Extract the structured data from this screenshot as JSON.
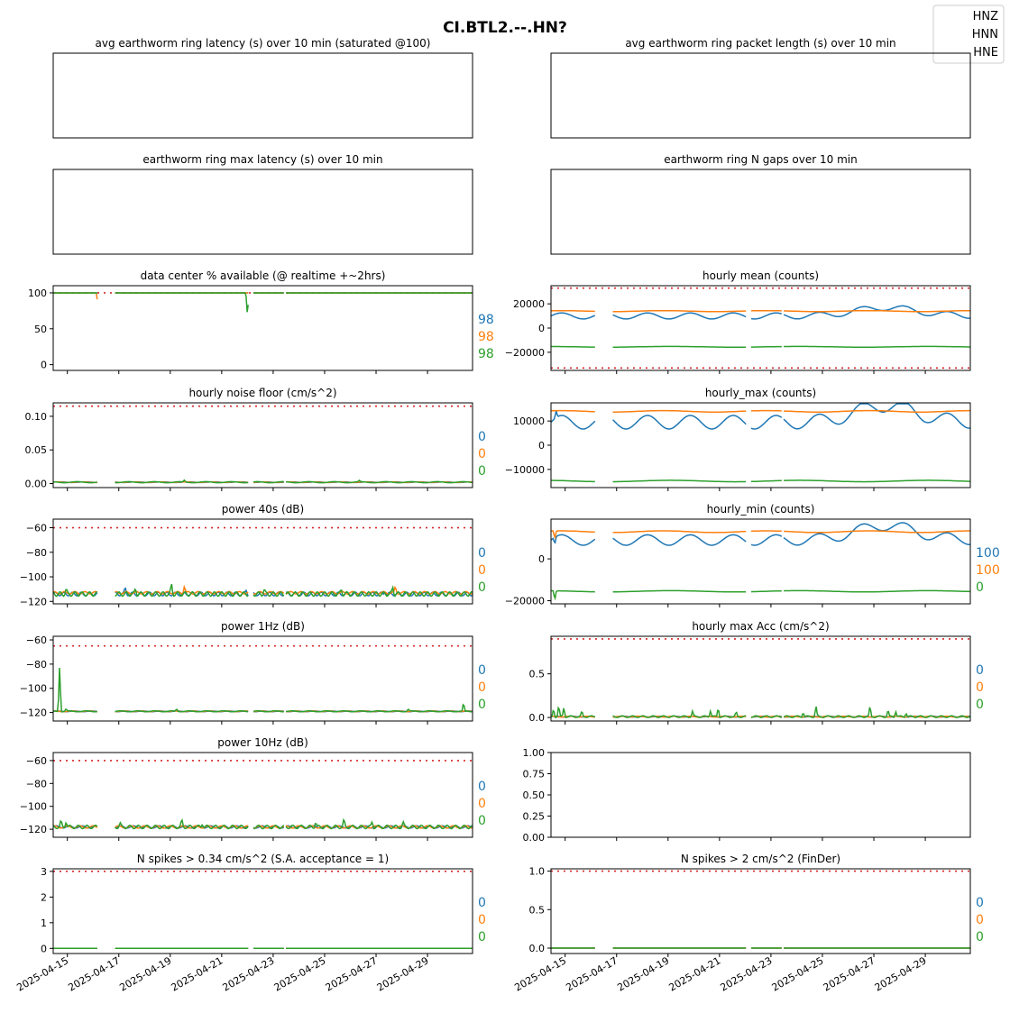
{
  "figure_title": "CI.BTL2.--.HN?",
  "legend": [
    {
      "label": "HNZ",
      "color": "#1f77b4"
    },
    {
      "label": "HNN",
      "color": "#ff7f0e"
    },
    {
      "label": "HNE",
      "color": "#2ca02c"
    }
  ],
  "colors": {
    "threshold": "#d62728",
    "series": [
      "#1f77b4",
      "#ff7f0e",
      "#2ca02c"
    ]
  },
  "x_tick_labels": [
    "2025-04-15",
    "2025-04-17",
    "2025-04-19",
    "2025-04-21",
    "2025-04-23",
    "2025-04-25",
    "2025-04-27",
    "2025-04-29"
  ],
  "chart_data": [
    {
      "type": "line",
      "title": "avg earthworm ring latency (s)   over 10 min (saturated @100)",
      "empty": true,
      "show_ticks": false,
      "side_values": []
    },
    {
      "type": "line",
      "title": "avg earthworm ring packet length (s)   over 10 min",
      "empty": true,
      "show_ticks": false,
      "side_values": []
    },
    {
      "type": "line",
      "title": "earthworm ring max latency (s)   over 10 min",
      "empty": true,
      "show_ticks": false,
      "side_values": []
    },
    {
      "type": "line",
      "title": "earthworm ring N gaps   over 10 min",
      "empty": true,
      "show_ticks": false,
      "side_values": []
    },
    {
      "type": "line",
      "title": "data center % available (@ realtime +~2hrs)",
      "ylim": [
        -8,
        110
      ],
      "yticks": [
        0,
        50,
        100
      ],
      "ytick_labels": [
        "0",
        "50",
        "100"
      ],
      "thresholds": [
        100
      ],
      "side_values": [
        "98",
        "98",
        "98"
      ],
      "series": [
        {
          "name": "HNZ",
          "base": 100,
          "amp": 0,
          "wave": 0,
          "spikes": []
        },
        {
          "name": "HNN",
          "base": 100,
          "amp": 0,
          "wave": 0,
          "spikes": [
            [
              1.75,
              -25
            ]
          ]
        },
        {
          "name": "HNE",
          "base": 100,
          "amp": 0,
          "wave": 0,
          "spikes": [
            [
              7.55,
              -33
            ],
            [
              7.7,
              -40
            ]
          ]
        }
      ]
    },
    {
      "type": "line",
      "title": "hourly mean (counts)",
      "ylim": [
        -35000,
        35000
      ],
      "yticks": [
        -20000,
        0,
        20000
      ],
      "ytick_labels": [
        "−20000",
        "0",
        "20000"
      ],
      "thresholds": [
        33000,
        -33000
      ],
      "side_values": [],
      "series": [
        {
          "name": "HNZ",
          "base": 10000,
          "amp": 2500,
          "wave": 1.2,
          "trend": [
            [
              13,
              17000
            ],
            [
              16,
              11000
            ]
          ],
          "spikes": []
        },
        {
          "name": "HNN",
          "base": 14000,
          "amp": 400,
          "wave": 0.5,
          "spikes": []
        },
        {
          "name": "HNE",
          "base": -15500,
          "amp": 300,
          "wave": 0.4,
          "spikes": []
        }
      ]
    },
    {
      "type": "line",
      "title": "hourly noise floor (cm/s^2)",
      "ylim": [
        -0.006,
        0.12
      ],
      "yticks": [
        0,
        0.05,
        0.1
      ],
      "ytick_labels": [
        "0.00",
        "0.05",
        "0.10"
      ],
      "thresholds": [
        0.115
      ],
      "side_values": [
        "0",
        "0",
        "0"
      ],
      "series": [
        {
          "name": "HNZ",
          "base": 0.002,
          "amp": 0.0005,
          "wave": 2,
          "spikes": []
        },
        {
          "name": "HNN",
          "base": 0.002,
          "amp": 0.0005,
          "wave": 2,
          "spikes": []
        },
        {
          "name": "HNE",
          "base": 0.002,
          "amp": 0.0008,
          "wave": 2,
          "spikes": [
            [
              5.1,
              0.003
            ],
            [
              11.9,
              0.002
            ]
          ]
        }
      ]
    },
    {
      "type": "line",
      "title": "hourly_max (counts)",
      "ylim": [
        -17500,
        17500
      ],
      "yticks": [
        -10000,
        0,
        10000
      ],
      "ytick_labels": [
        "−10000",
        "0",
        "10000"
      ],
      "thresholds": [],
      "side_values": [],
      "series": [
        {
          "name": "HNZ",
          "base": 9500,
          "amp": 2800,
          "wave": 1.2,
          "trend": [
            [
              13,
              16500
            ],
            [
              16,
              10000
            ]
          ],
          "spikes": [
            [
              0.2,
              3000
            ]
          ]
        },
        {
          "name": "HNN",
          "base": 14000,
          "amp": 300,
          "wave": 0.5,
          "spikes": []
        },
        {
          "name": "HNE",
          "base": -14800,
          "amp": 300,
          "wave": 0.4,
          "spikes": []
        }
      ]
    },
    {
      "type": "line",
      "title": "power 40s (dB)",
      "ylim": [
        -122,
        -53
      ],
      "yticks": [
        -120,
        -100,
        -80,
        -60
      ],
      "ytick_labels": [
        "−120",
        "−100",
        "−80",
        "−60"
      ],
      "thresholds": [
        -60
      ],
      "side_values": [
        "0",
        "0",
        "0"
      ],
      "series": [
        {
          "name": "HNZ",
          "base": -114,
          "amp": 1.5,
          "wave": 6,
          "spikes": [
            [
              2.8,
              5
            ],
            [
              7.5,
              3
            ],
            [
              12.9,
              4
            ]
          ]
        },
        {
          "name": "HNN",
          "base": -113,
          "amp": 1,
          "wave": 5,
          "spikes": [
            [
              5.1,
              6
            ],
            [
              13.3,
              5
            ]
          ]
        },
        {
          "name": "HNE",
          "base": -114,
          "amp": 1.8,
          "wave": 7,
          "spikes": [
            [
              0.5,
              4
            ],
            [
              3.2,
              5
            ],
            [
              4.6,
              8
            ],
            [
              8.2,
              4
            ],
            [
              11.2,
              4
            ],
            [
              13.2,
              6
            ]
          ]
        }
      ]
    },
    {
      "type": "line",
      "title": "hourly_min (counts)",
      "ylim": [
        -21500,
        19000
      ],
      "yticks": [
        -20000,
        0
      ],
      "ytick_labels": [
        "−20000",
        "0"
      ],
      "thresholds": [],
      "side_values": [
        "100",
        "100",
        "0"
      ],
      "series": [
        {
          "name": "HNZ",
          "base": 9000,
          "amp": 2500,
          "wave": 1.2,
          "trend": [
            [
              13,
              16000
            ],
            [
              16,
              9500
            ]
          ],
          "spikes": [
            [
              0.15,
              -3500
            ]
          ]
        },
        {
          "name": "HNN",
          "base": 13000,
          "amp": 400,
          "wave": 0.5,
          "spikes": [
            [
              0.15,
              -4000
            ]
          ]
        },
        {
          "name": "HNE",
          "base": -15500,
          "amp": 300,
          "wave": 0.4,
          "spikes": [
            [
              0.15,
              -4500
            ]
          ]
        }
      ]
    },
    {
      "type": "line",
      "title": "power 1Hz (dB)",
      "ylim": [
        -127,
        -57
      ],
      "yticks": [
        -120,
        -100,
        -80,
        -60
      ],
      "ytick_labels": [
        "−120",
        "−100",
        "−80",
        "−60"
      ],
      "thresholds": [
        -65
      ],
      "side_values": [
        "0",
        "0",
        "0"
      ],
      "series": [
        {
          "name": "HNZ",
          "base": -119,
          "amp": 0.3,
          "wave": 3,
          "spikes": []
        },
        {
          "name": "HNN",
          "base": -119,
          "amp": 0.3,
          "wave": 3,
          "spikes": []
        },
        {
          "name": "HNE",
          "base": -119,
          "amp": 0.4,
          "wave": 3,
          "spikes": [
            [
              0.25,
              40
            ],
            [
              0.5,
              2
            ],
            [
              4.8,
              2
            ],
            [
              13.8,
              2
            ],
            [
              15.95,
              7
            ]
          ]
        }
      ]
    },
    {
      "type": "line",
      "title": "hourly max Acc (cm/s^2)",
      "ylim": [
        -0.04,
        0.93
      ],
      "yticks": [
        0,
        0.5
      ],
      "ytick_labels": [
        "0.0",
        "0.5"
      ],
      "thresholds": [
        0.9
      ],
      "side_values": [
        "0",
        "0",
        "0"
      ],
      "series": [
        {
          "name": "HNZ",
          "base": 0.01,
          "amp": 0.005,
          "wave": 3,
          "spikes": []
        },
        {
          "name": "HNN",
          "base": 0.01,
          "amp": 0.005,
          "wave": 3,
          "spikes": []
        },
        {
          "name": "HNE",
          "base": 0.01,
          "amp": 0.01,
          "wave": 5,
          "spikes": [
            [
              0.1,
              0.1
            ],
            [
              0.3,
              0.13
            ],
            [
              0.5,
              0.12
            ],
            [
              1.2,
              0.06
            ],
            [
              5.5,
              0.06
            ],
            [
              6.2,
              0.08
            ],
            [
              6.5,
              0.11
            ],
            [
              7.2,
              0.05
            ],
            [
              9.8,
              0.06
            ],
            [
              10.3,
              0.13
            ],
            [
              12.4,
              0.12
            ],
            [
              13.1,
              0.08
            ],
            [
              13.4,
              0.07
            ],
            [
              13.8,
              0.05
            ]
          ]
        }
      ]
    },
    {
      "type": "line",
      "title": "power 10Hz (dB)",
      "ylim": [
        -127,
        -53
      ],
      "yticks": [
        -120,
        -100,
        -80,
        -60
      ],
      "ytick_labels": [
        "−120",
        "−100",
        "−80",
        "−60"
      ],
      "thresholds": [
        -60
      ],
      "side_values": [
        "0",
        "0",
        "0"
      ],
      "series": [
        {
          "name": "HNZ",
          "base": -118,
          "amp": 1,
          "wave": 4,
          "spikes": []
        },
        {
          "name": "HNN",
          "base": -118,
          "amp": 1,
          "wave": 4,
          "spikes": []
        },
        {
          "name": "HNE",
          "base": -118,
          "amp": 1.5,
          "wave": 6,
          "spikes": [
            [
              0.3,
              5
            ],
            [
              0.5,
              6
            ],
            [
              2.6,
              3
            ],
            [
              5.0,
              6
            ],
            [
              5.8,
              4
            ],
            [
              10.2,
              5
            ],
            [
              11.3,
              6
            ],
            [
              12.4,
              5
            ],
            [
              13.6,
              4
            ]
          ]
        }
      ]
    },
    {
      "type": "line",
      "title": "",
      "empty": true,
      "ylim": [
        0,
        1
      ],
      "yticks": [
        0,
        0.25,
        0.5,
        0.75,
        1
      ],
      "ytick_labels": [
        "0.00",
        "0.25",
        "0.50",
        "0.75",
        "1.00"
      ],
      "thresholds": [],
      "side_values": []
    },
    {
      "type": "line",
      "title": "N spikes > 0.34 cm/s^2 (S.A. acceptance = 1)",
      "ylim": [
        -0.2,
        3.1
      ],
      "yticks": [
        0,
        1,
        2,
        3
      ],
      "ytick_labels": [
        "0",
        "1",
        "2",
        "3"
      ],
      "thresholds": [
        3
      ],
      "side_values": [
        "0",
        "0",
        "0"
      ],
      "series": [
        {
          "name": "HNZ",
          "base": 0,
          "amp": 0,
          "wave": 0,
          "spikes": []
        },
        {
          "name": "HNN",
          "base": 0,
          "amp": 0,
          "wave": 0,
          "spikes": []
        },
        {
          "name": "HNE",
          "base": 0,
          "amp": 0,
          "wave": 0,
          "spikes": []
        }
      ]
    },
    {
      "type": "line",
      "title": "N spikes > 2 cm/s^2 (FinDer)",
      "ylim": [
        -0.07,
        1.03
      ],
      "yticks": [
        0,
        0.5,
        1
      ],
      "ytick_labels": [
        "0.0",
        "0.5",
        "1.0"
      ],
      "thresholds": [
        1
      ],
      "side_values": [
        "0",
        "0",
        "0"
      ],
      "series": [
        {
          "name": "HNZ",
          "base": 0,
          "amp": 0,
          "wave": 0,
          "spikes": []
        },
        {
          "name": "HNN",
          "base": 0,
          "amp": 0,
          "wave": 0,
          "spikes": []
        },
        {
          "name": "HNE",
          "base": 0,
          "amp": 0,
          "wave": 0,
          "spikes": []
        }
      ]
    }
  ]
}
